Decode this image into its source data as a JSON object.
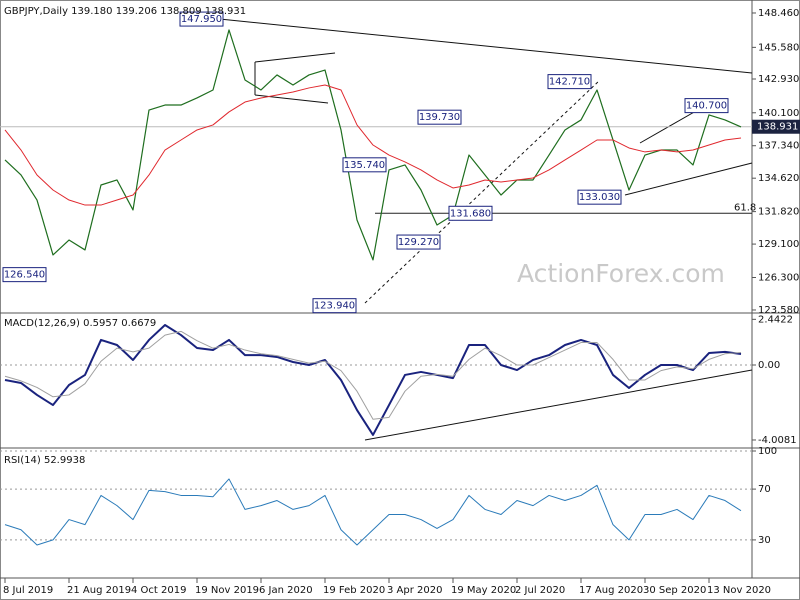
{
  "chart_data": [
    {
      "type": "line",
      "title": "GBPJPY,Daily  139.180 139.206 138.809 138.931",
      "watermark": "ActionForex.com",
      "ylim": [
        123.41,
        149.38
      ],
      "yticks": [
        {
          "value": 148.46,
          "label": "148.460"
        },
        {
          "value": 145.58,
          "label": "145.580"
        },
        {
          "value": 142.93,
          "label": "142.930"
        },
        {
          "value": 140.1,
          "label": "140.100"
        },
        {
          "value": 137.34,
          "label": "137.340"
        },
        {
          "value": 134.62,
          "label": "134.620"
        },
        {
          "value": 131.82,
          "label": "131.820"
        },
        {
          "value": 129.1,
          "label": "129.100"
        },
        {
          "value": 126.3,
          "label": "126.300"
        },
        {
          "value": 123.58,
          "label": "123.580"
        }
      ],
      "grid": false,
      "last_price": 138.931,
      "fib_label": 61.8,
      "annotations": [
        {
          "value": 147.95,
          "label": "147.950"
        },
        {
          "value": 126.54,
          "label": "126.540"
        },
        {
          "value": 123.94,
          "label": "123.940"
        },
        {
          "value": 135.74,
          "label": "135.740"
        },
        {
          "value": 129.27,
          "label": "129.270"
        },
        {
          "value": 131.68,
          "label": "131.680"
        },
        {
          "value": 139.73,
          "label": "139.730"
        },
        {
          "value": 142.71,
          "label": "142.710"
        },
        {
          "value": 133.03,
          "label": "133.030"
        },
        {
          "value": 140.7,
          "label": "140.700"
        }
      ],
      "series": [
        {
          "color": "#1f6e1f",
          "width": 1.2,
          "values": [
            136.15,
            134.89,
            132.79,
            128.19,
            129.44,
            128.61,
            134.05,
            134.47,
            131.96,
            140.33,
            140.75,
            140.75,
            141.34,
            142.01,
            147.04,
            142.85,
            142.01,
            143.27,
            142.43,
            143.27,
            143.68,
            138.66,
            131.12,
            127.77,
            135.31,
            135.73,
            133.63,
            130.7,
            131.54,
            136.56,
            134.89,
            133.21,
            134.47,
            134.47,
            136.56,
            138.66,
            139.5,
            142.01,
            137.82,
            133.63,
            136.56,
            136.98,
            136.98,
            135.73,
            139.92,
            139.5,
            138.91
          ]
        },
        {
          "color": "#e0282e",
          "width": 1,
          "values": [
            138.66,
            136.98,
            134.89,
            133.63,
            132.79,
            132.37,
            132.37,
            132.79,
            133.21,
            134.89,
            136.98,
            137.82,
            138.66,
            139.08,
            140.17,
            141.0,
            141.34,
            141.59,
            141.84,
            142.18,
            142.43,
            142.01,
            139.08,
            137.4,
            136.56,
            135.98,
            135.31,
            134.47,
            133.8,
            134.05,
            134.47,
            134.3,
            134.47,
            134.64,
            135.31,
            136.15,
            136.98,
            137.82,
            137.82,
            137.15,
            136.82,
            136.98,
            136.82,
            136.98,
            137.4,
            137.82,
            137.99
          ]
        }
      ]
    },
    {
      "type": "line",
      "title": "MACD(12,26,9) 0.5957 0.6679",
      "ylim": [
        -4.33,
        2.727
      ],
      "yticks": [
        2.4422,
        {
          "value": 0,
          "label": "0.00"
        },
        -4.0081
      ],
      "grid": false,
      "series": [
        {
          "color": "#1a237e",
          "width": 2,
          "values": [
            -0.8,
            -0.96,
            -1.6,
            -2.14,
            -1.07,
            -0.53,
            1.34,
            1.07,
            0.27,
            1.34,
            2.14,
            1.6,
            0.91,
            0.8,
            1.34,
            0.53,
            0.53,
            0.43,
            0.16,
            0,
            0.27,
            -0.8,
            -2.41,
            -3.74,
            -2.14,
            -0.53,
            -0.37,
            -0.53,
            -0.7,
            1.07,
            1.07,
            0,
            -0.27,
            0.27,
            0.53,
            1.07,
            1.34,
            1.07,
            -0.53,
            -1.23,
            -0.53,
            0,
            0,
            -0.27,
            0.64,
            0.7,
            0.59
          ]
        },
        {
          "color": "#a0a0a0",
          "width": 1,
          "values": [
            -0.6,
            -0.85,
            -1.2,
            -1.7,
            -1.6,
            -1.0,
            0.2,
            0.9,
            0.7,
            0.9,
            1.6,
            1.8,
            1.3,
            0.9,
            1.1,
            0.8,
            0.6,
            0.5,
            0.3,
            0.1,
            0.2,
            -0.3,
            -1.4,
            -2.9,
            -2.8,
            -1.4,
            -0.6,
            -0.5,
            -0.6,
            0.3,
            0.9,
            0.5,
            0.0,
            0.0,
            0.4,
            0.8,
            1.2,
            1.2,
            0.3,
            -0.8,
            -0.8,
            -0.3,
            -0.1,
            -0.2,
            0.3,
            0.6,
            0.67
          ]
        }
      ]
    },
    {
      "type": "line",
      "title": "RSI(14) 52.9938",
      "ylim": [
        0,
        100
      ],
      "yticks": [
        30,
        70,
        100
      ],
      "grid": true,
      "categories": [
        "8 Jul 2019",
        null,
        null,
        null,
        "21 Aug 2019",
        null,
        null,
        null,
        "4 Oct 2019",
        null,
        null,
        null,
        "19 Nov 2019",
        null,
        null,
        null,
        "6 Jan 2020",
        null,
        null,
        null,
        "19 Feb 2020",
        null,
        null,
        null,
        "3 Apr 2020",
        null,
        null,
        null,
        "19 May 2020",
        null,
        null,
        null,
        "2 Jul 2020",
        null,
        null,
        null,
        "17 Aug 2020",
        null,
        null,
        null,
        "30 Sep 2020",
        null,
        null,
        null,
        "13 Nov 2020",
        null,
        null
      ],
      "series": [
        {
          "color": "#2b7bb9",
          "width": 1,
          "values": [
            42,
            38,
            26,
            30,
            46,
            42,
            65,
            57,
            46,
            69,
            68,
            65,
            65,
            64,
            78,
            54,
            57,
            61,
            54,
            57,
            65,
            38,
            26,
            38,
            50,
            50,
            46,
            39,
            46,
            65,
            54,
            50,
            61,
            57,
            65,
            61,
            65,
            73,
            42,
            30,
            50,
            50,
            54,
            46,
            65,
            61,
            53
          ]
        }
      ]
    }
  ]
}
